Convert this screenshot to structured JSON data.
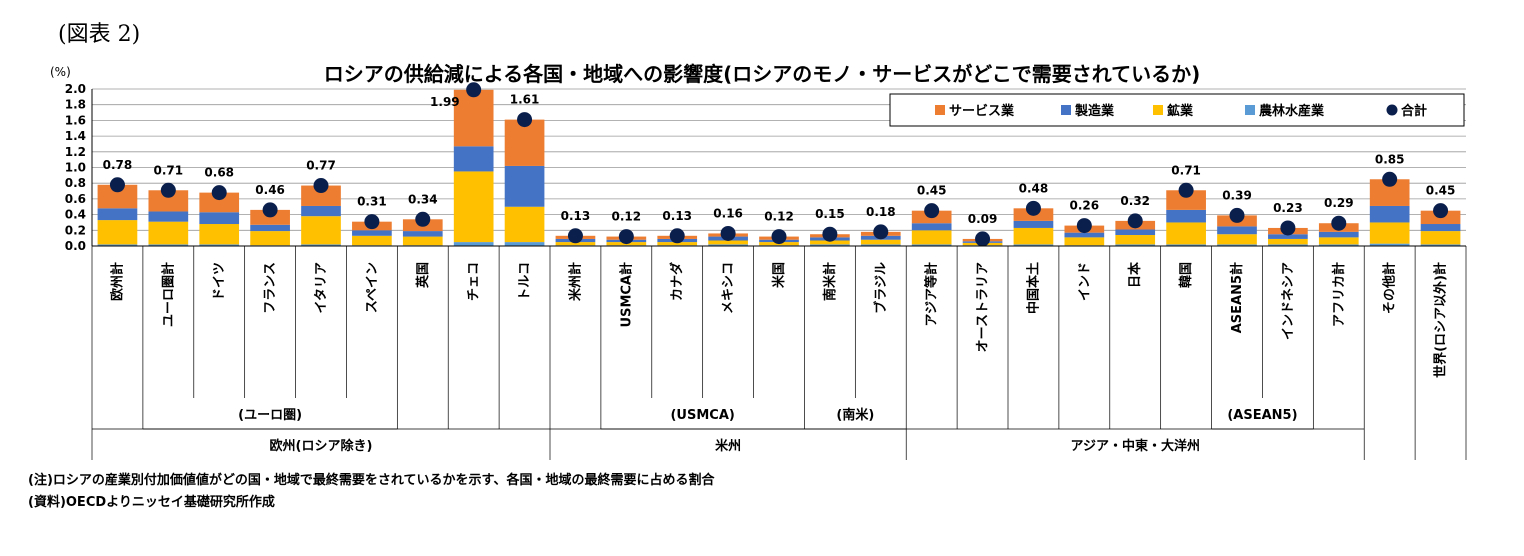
{
  "figure_label": "(図表 2)",
  "notes": [
    "(注)ロシアの産業別付加価値値がどの国・地域で最終需要をされているかを示す、各国・地域の最終需要に占める割合",
    "(資料)OECDよりニッセイ基礎研究所作成"
  ],
  "colors": {
    "services": "#ED7D31",
    "manufacturing": "#4472C4",
    "mining": "#FFC000",
    "agriculture": "#5B9BD5",
    "total": "#0B1F4D"
  },
  "chart_data": {
    "type": "bar",
    "title": "ロシアの供給減による各国・地域への影響度(ロシアのモノ・サービスがどこで需要されているか)",
    "ylabel": "(%)",
    "ylim": [
      0,
      2.0
    ],
    "yticks": [
      "0.0",
      "0.2",
      "0.4",
      "0.6",
      "0.8",
      "1.0",
      "1.2",
      "1.4",
      "1.6",
      "1.8",
      "2.0"
    ],
    "grid": true,
    "legend_position": "top-right",
    "categories": [
      "欧州計",
      "ユーロ圏計",
      "ドイツ",
      "フランス",
      "イタリア",
      "スペイン",
      "英国",
      "チェコ",
      "トルコ",
      "米州計",
      "USMCA計",
      "カナダ",
      "メキシコ",
      "米国",
      "南米計",
      "ブラジル",
      "アジア等計",
      "オーストラリア",
      "中国本土",
      "インド",
      "日本",
      "韓国",
      "ASEAN5計",
      "インドネシア",
      "アフリカ計",
      "その他計",
      "世界(ロシア以外)計"
    ],
    "series": [
      {
        "name": "農林水産業",
        "values": [
          0.02,
          0.02,
          0.02,
          0.01,
          0.02,
          0.01,
          0.01,
          0.05,
          0.05,
          0.01,
          0.01,
          0.01,
          0.02,
          0.01,
          0.02,
          0.02,
          0.02,
          0.01,
          0.02,
          0.01,
          0.02,
          0.02,
          0.02,
          0.02,
          0.02,
          0.03,
          0.02
        ]
      },
      {
        "name": "鉱業",
        "values": [
          0.31,
          0.29,
          0.26,
          0.18,
          0.36,
          0.12,
          0.11,
          0.9,
          0.45,
          0.04,
          0.04,
          0.04,
          0.05,
          0.04,
          0.05,
          0.06,
          0.18,
          0.03,
          0.21,
          0.1,
          0.12,
          0.28,
          0.13,
          0.07,
          0.09,
          0.27,
          0.17
        ]
      },
      {
        "name": "製造業",
        "values": [
          0.15,
          0.13,
          0.15,
          0.08,
          0.13,
          0.07,
          0.07,
          0.32,
          0.52,
          0.04,
          0.03,
          0.04,
          0.05,
          0.03,
          0.04,
          0.05,
          0.09,
          0.02,
          0.09,
          0.06,
          0.07,
          0.16,
          0.1,
          0.06,
          0.07,
          0.21,
          0.09
        ]
      },
      {
        "name": "サービス業",
        "values": [
          0.3,
          0.27,
          0.25,
          0.19,
          0.26,
          0.11,
          0.15,
          0.72,
          0.59,
          0.04,
          0.04,
          0.04,
          0.04,
          0.04,
          0.04,
          0.05,
          0.16,
          0.03,
          0.16,
          0.09,
          0.11,
          0.25,
          0.14,
          0.08,
          0.11,
          0.34,
          0.17
        ]
      }
    ],
    "totals": [
      0.78,
      0.71,
      0.68,
      0.46,
      0.77,
      0.31,
      0.34,
      1.99,
      1.61,
      0.13,
      0.12,
      0.13,
      0.16,
      0.12,
      0.15,
      0.18,
      0.45,
      0.09,
      0.48,
      0.26,
      0.32,
      0.71,
      0.39,
      0.23,
      0.29,
      0.85,
      0.45
    ],
    "total_labels": [
      "0.78",
      "0.71",
      "0.68",
      "0.46",
      "0.77",
      "0.31",
      "0.34",
      "1.99",
      "1.61",
      "0.13",
      "0.12",
      "0.13",
      "0.16",
      "0.12",
      "0.15",
      "0.18",
      "0.45",
      "0.09",
      "0.48",
      "0.26",
      "0.32",
      "0.71",
      "0.39",
      "0.23",
      "0.29",
      "0.85",
      "0.45"
    ],
    "legend": [
      "サービス業",
      "製造業",
      "鉱業",
      "農林水産業",
      "合計"
    ],
    "subgroups": [
      {
        "label": "(ユーロ圏)",
        "start": 1,
        "end": 5
      },
      {
        "label": "(USMCA)",
        "start": 10,
        "end": 13
      },
      {
        "label": "(南米)",
        "start": 14,
        "end": 15
      },
      {
        "label": "(ASEAN5)",
        "start": 22,
        "end": 23
      }
    ],
    "groups": [
      {
        "label": "欧州(ロシア除き)",
        "start": 0,
        "end": 8
      },
      {
        "label": "米州",
        "start": 9,
        "end": 15
      },
      {
        "label": "アジア・中東・大洋州",
        "start": 16,
        "end": 24
      }
    ]
  }
}
